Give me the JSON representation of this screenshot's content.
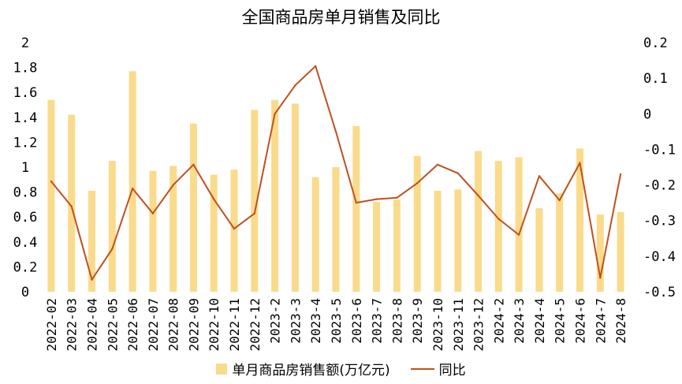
{
  "chart_data": {
    "type": "bar",
    "title": "全国商品房单月销售及同比",
    "categories": [
      "2022-02",
      "2022-03",
      "2022-04",
      "2022-05",
      "2022-06",
      "2022-07",
      "2022-08",
      "2022-09",
      "2022-10",
      "2022-11",
      "2022-12",
      "2023-2",
      "2023-3",
      "2023-4",
      "2023-5",
      "2023-6",
      "2023-7",
      "2023-8",
      "2023-9",
      "2023-10",
      "2023-11",
      "2023-12",
      "2024-2",
      "2024-3",
      "2024-4",
      "2024-5",
      "2024-6",
      "2024-7",
      "2024-8"
    ],
    "series": [
      {
        "name": "单月商品房销售额(万亿元)",
        "type": "bar",
        "axis": "left",
        "color": "#FADB8C",
        "values": [
          1.54,
          1.42,
          0.81,
          1.05,
          1.77,
          0.97,
          1.01,
          1.35,
          0.94,
          0.98,
          1.46,
          1.54,
          1.51,
          0.92,
          1.0,
          1.33,
          0.72,
          0.74,
          1.09,
          0.81,
          0.82,
          1.13,
          1.05,
          1.08,
          0.67,
          0.79,
          1.15,
          0.62,
          0.64
        ]
      },
      {
        "name": "同比",
        "type": "line",
        "axis": "right",
        "color": "#C0501E",
        "values": [
          -0.19,
          -0.26,
          -0.466,
          -0.38,
          -0.21,
          -0.28,
          -0.2,
          -0.143,
          -0.24,
          -0.323,
          -0.28,
          -0.0,
          0.08,
          0.134,
          -0.05,
          -0.25,
          -0.24,
          -0.236,
          -0.195,
          -0.143,
          -0.167,
          -0.23,
          -0.295,
          -0.34,
          -0.175,
          -0.243,
          -0.138,
          -0.461,
          -0.17
        ]
      }
    ],
    "y_left": {
      "min": 0,
      "max": 2,
      "ticks": [
        "0",
        "0.2",
        "0.4",
        "0.6",
        "0.8",
        "1",
        "1.2",
        "1.4",
        "1.6",
        "1.8",
        "2"
      ]
    },
    "y_right": {
      "min": -0.5,
      "max": 0.2,
      "ticks": [
        "-0.5",
        "-0.4",
        "-0.3",
        "-0.2",
        "-0.1",
        "0",
        "0.1",
        "0.2"
      ]
    },
    "grid": false,
    "legend": "bottom"
  }
}
